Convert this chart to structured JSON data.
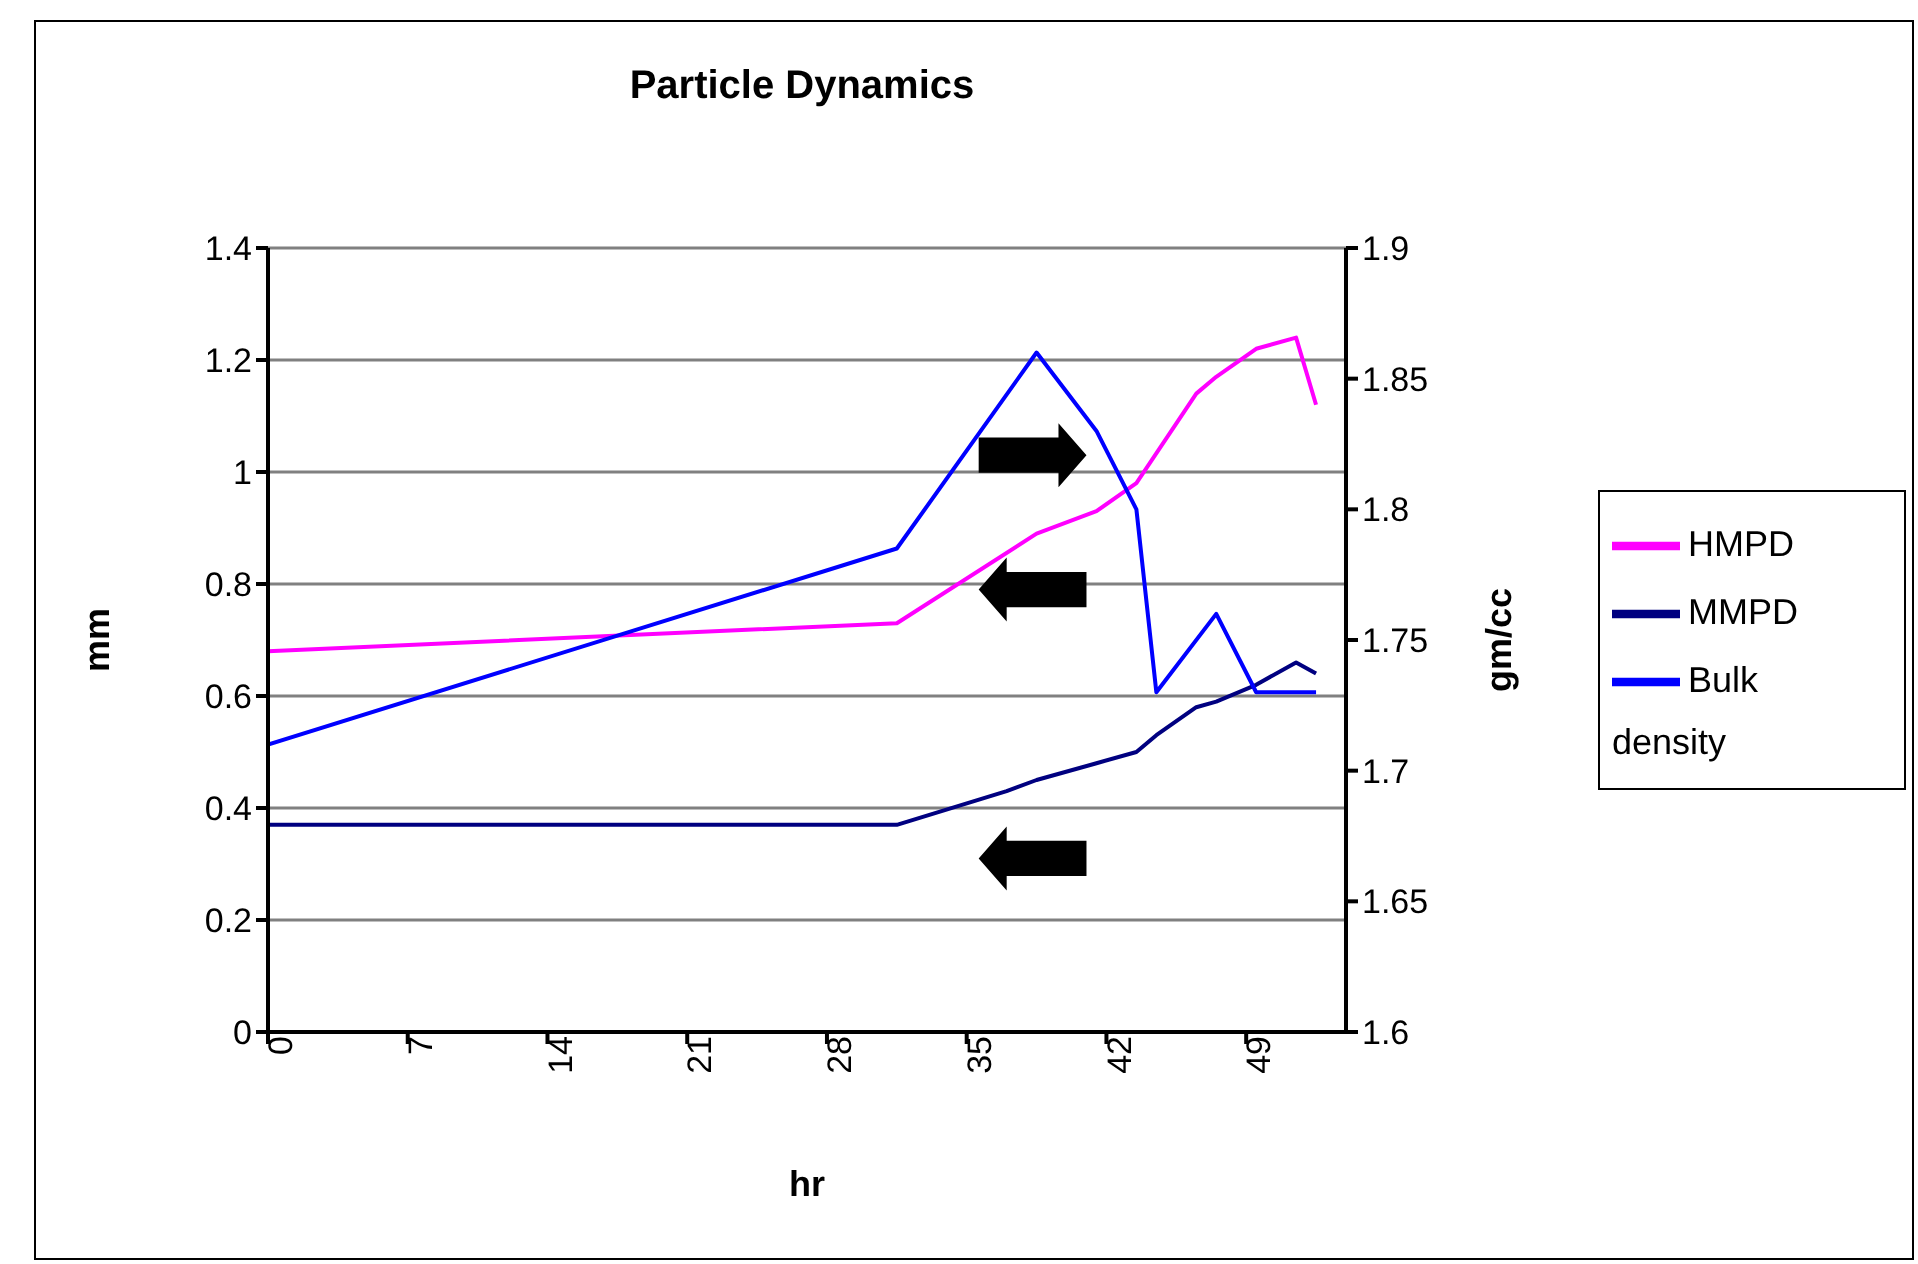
{
  "chart_data": {
    "type": "line",
    "title": "Particle Dynamics",
    "xlabel": "hr",
    "ylabel": "mm",
    "y2label": "gm/cc",
    "xlim": [
      0,
      54
    ],
    "xticks": [
      0,
      7,
      14,
      21,
      28,
      35,
      42,
      49
    ],
    "ylim": [
      0,
      1.4
    ],
    "yticks": [
      0,
      0.2,
      0.4,
      0.6,
      0.8,
      1,
      1.2,
      1.4
    ],
    "y2lim": [
      1.6,
      1.9
    ],
    "y2ticks": [
      1.6,
      1.65,
      1.7,
      1.75,
      1.8,
      1.85,
      1.9
    ],
    "grid": "y",
    "legend": "right",
    "marker": "none",
    "line_style": "solid",
    "series": [
      {
        "name": "HMPD",
        "color": "#ff00ff",
        "x": [
          0,
          31.5,
          38.5,
          41.5,
          43.5,
          46.5,
          47.5,
          49.5,
          51.5,
          52.5
        ],
        "values": [
          0.68,
          0.73,
          0.89,
          0.93,
          0.98,
          1.14,
          1.17,
          1.22,
          1.24,
          1.12
        ]
      },
      {
        "name": "MMPD",
        "color": "#000080",
        "x": [
          0,
          31.5,
          37,
          38.5,
          41.5,
          43.5,
          44.5,
          46.5,
          47.5,
          49.5,
          51.5,
          52.5
        ],
        "values": [
          0.37,
          0.37,
          0.43,
          0.45,
          0.48,
          0.5,
          0.53,
          0.58,
          0.59,
          0.62,
          0.66,
          0.64
        ]
      },
      {
        "name": "Bulk density",
        "color": "#0000ff",
        "axis": "y2",
        "x": [
          0,
          31.5,
          38.5,
          41.5,
          43.5,
          44.5,
          47.5,
          49.5,
          52.5
        ],
        "values": [
          1.71,
          1.785,
          1.86,
          1.83,
          1.8,
          1.73,
          1.76,
          1.73,
          1.73
        ]
      }
    ]
  }
}
